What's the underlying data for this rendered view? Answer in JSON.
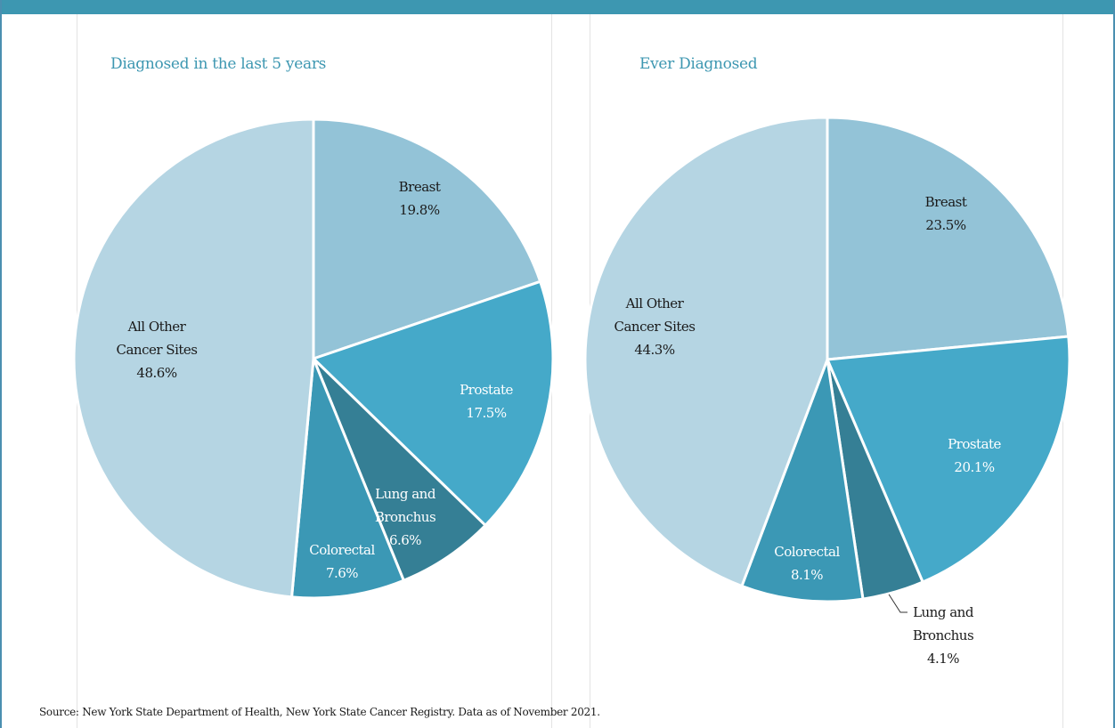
{
  "chart_data": [
    {
      "type": "pie",
      "title": "Diagnosed in the last 5 years",
      "slices": [
        {
          "label": "Breast",
          "value": 19.8,
          "value_label": "19.8%",
          "color": "#93c3d7",
          "label_color": "#1a1a1a"
        },
        {
          "label": "Prostate",
          "value": 17.5,
          "value_label": "17.5%",
          "color": "#45a9c9",
          "label_color": "#ffffff"
        },
        {
          "label": "Lung and Bronchus",
          "value": 6.6,
          "value_label": "6.6%",
          "color": "#357f95",
          "label_color": "#ffffff"
        },
        {
          "label": "Colorectal",
          "value": 7.6,
          "value_label": "7.6%",
          "color": "#3b98b5",
          "label_color": "#ffffff"
        },
        {
          "label": "All Other Cancer Sites",
          "value": 48.6,
          "value_label": "48.6%",
          "color": "#b5d5e3",
          "label_color": "#1a1a1a"
        }
      ]
    },
    {
      "type": "pie",
      "title": "Ever Diagnosed",
      "slices": [
        {
          "label": "Breast",
          "value": 23.5,
          "value_label": "23.5%",
          "color": "#93c3d7",
          "label_color": "#1a1a1a"
        },
        {
          "label": "Prostate",
          "value": 20.1,
          "value_label": "20.1%",
          "color": "#45a9c9",
          "label_color": "#ffffff"
        },
        {
          "label": "Lung and Bronchus",
          "value": 4.1,
          "value_label": "4.1%",
          "color": "#357f95",
          "label_color": "#1a1a1a"
        },
        {
          "label": "Colorectal",
          "value": 8.1,
          "value_label": "8.1%",
          "color": "#3b98b5",
          "label_color": "#ffffff"
        },
        {
          "label": "All Other Cancer Sites",
          "value": 44.3,
          "value_label": "44.3%",
          "color": "#b5d5e3",
          "label_color": "#1a1a1a"
        }
      ]
    }
  ],
  "source": "Source: New York State Department of Health, New York State Cancer Registry. Data as of November 2021.",
  "colors": {
    "header_band": "#3d97b1",
    "title_text": "#3d97b1"
  }
}
